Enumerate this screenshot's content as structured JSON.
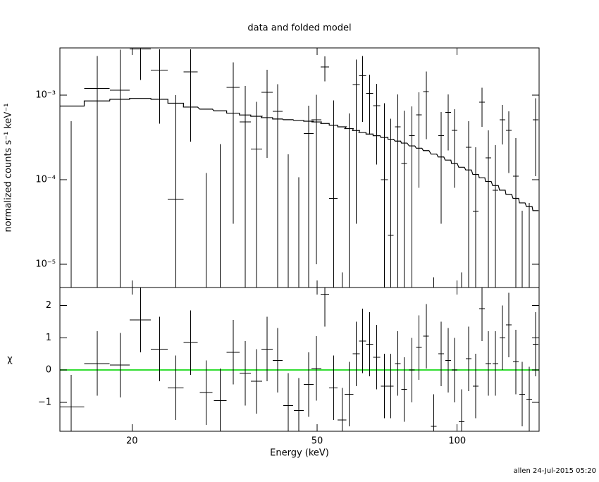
{
  "chart_data": {
    "type": "spectrum_residuals",
    "title": "data and folded model",
    "xlabel": "Energy (keV)",
    "ylabel": "normalized counts s⁻¹ keV⁻¹",
    "residual_ylabel": "χ",
    "footer": "allen 24-Jul-2015 05:20",
    "xlog": true,
    "ylog": true,
    "xlim": [
      14,
      150
    ],
    "xticks": [
      20,
      50,
      100
    ],
    "ylim": [
      5.3e-06,
      0.0036
    ],
    "yticks": [
      {
        "value": 1e-05,
        "label": "10⁻⁵"
      },
      {
        "value": 0.0001,
        "label": "10⁻⁴"
      },
      {
        "value": 0.001,
        "label": "10⁻³"
      }
    ],
    "residual_ylim": [
      -1.9,
      2.56
    ],
    "residual_yticks": [
      {
        "value": -1,
        "label": "−1"
      },
      0,
      1,
      2
    ],
    "residual_reference": 0,
    "data_color": "#000000",
    "model_color": "#000000",
    "reference_color": "#33dd33",
    "x": [
      14.81,
      16.85,
      18.85,
      20.86,
      22.93,
      24.85,
      26.74,
      28.88,
      30.97,
      33.0,
      35.02,
      37.04,
      39.02,
      41.13,
      43.35,
      45.68,
      47.97,
      49.85,
      52.0,
      54.23,
      56.55,
      58.56,
      60.65,
      62.59,
      64.82,
      67.13,
      69.77,
      72.0,
      74.57,
      76.96,
      79.98,
      82.83,
      85.78,
      89.13,
      92.31,
      95.59,
      98.65,
      102.2,
      105.8,
      109.6,
      113.1,
      116.7,
      120.9,
      125.1,
      129.1,
      133.7,
      138.0,
      142.9,
      147.5
    ],
    "xerr": [
      0.98,
      1.06,
      0.92,
      1.1,
      0.96,
      0.96,
      0.94,
      0.91,
      0.98,
      1.04,
      0.98,
      1.04,
      1.09,
      1.01,
      1.06,
      1.12,
      1.18,
      1.22,
      1.09,
      1.14,
      1.19,
      1.23,
      1.06,
      1.1,
      1.13,
      1.17,
      1.22,
      1.01,
      1.04,
      1.08,
      1.12,
      1.16,
      1.2,
      1.25,
      1.29,
      1.34,
      1.38,
      1.43,
      1.48,
      1.53,
      1.58,
      1.63,
      1.69,
      1.75,
      1.81,
      1.87,
      1.93,
      2.0,
      2.06
    ],
    "values": [
      3e-06,
      0.00119,
      0.00114,
      0.0035,
      0.00196,
      5.8e-05,
      0.00188,
      3e-06,
      3e-06,
      0.00123,
      0.00048,
      0.00023,
      0.00108,
      0.00064,
      3e-06,
      3e-06,
      0.00035,
      0.00051,
      0.00215,
      6e-05,
      3e-06,
      3e-06,
      0.00133,
      0.00168,
      0.00104,
      0.00075,
      0.0001,
      2.2e-05,
      0.00042,
      0.000155,
      0.00033,
      0.00058,
      0.0011,
      3e-06,
      0.00033,
      0.00062,
      0.00038,
      3e-06,
      0.00024,
      4.2e-05,
      0.00082,
      0.00018,
      7.5e-05,
      0.00051,
      0.00038,
      0.00011,
      3e-06,
      3e-06,
      0.00051
    ],
    "errors": [
      0.000487,
      0.0017,
      0.0023,
      0.002,
      0.0015,
      0.00094,
      0.0016,
      0.000117,
      0.00026,
      0.0012,
      0.0008,
      0.0006,
      0.0009,
      0.0007,
      0.000195,
      0.000104,
      0.0004,
      0.0005,
      0.0007,
      0.0008,
      5e-06,
      0.0006,
      0.0013,
      0.0012,
      0.0007,
      0.0006,
      0.0007,
      0.0005,
      0.0006,
      0.0005,
      0.0004,
      0.0005,
      0.0008,
      4e-06,
      0.0003,
      0.0004,
      0.0003,
      5e-06,
      0.00025,
      0.0002,
      0.0004,
      0.0002,
      0.00018,
      0.00025,
      0.00026,
      0.0002,
      4e-05,
      5e-05,
      0.0004
    ],
    "model": [
      0.00074,
      0.00085,
      0.00089,
      0.00091,
      0.00089,
      0.0008,
      0.00072,
      0.00068,
      0.00065,
      0.00061,
      0.00058,
      0.00056,
      0.00054,
      0.00052,
      0.00051,
      0.0005,
      0.00049,
      0.00048,
      0.00046,
      0.00044,
      0.00042,
      0.0004,
      0.00038,
      0.00036,
      0.000345,
      0.00033,
      0.000315,
      0.0003,
      0.000285,
      0.00027,
      0.00025,
      0.000235,
      0.00022,
      0.0002,
      0.000185,
      0.00017,
      0.000155,
      0.00014,
      0.00013,
      0.000115,
      0.000105,
      9.5e-05,
      8.5e-05,
      7.5e-05,
      6.7e-05,
      6e-05,
      5.3e-05,
      4.8e-05,
      4.3e-05
    ],
    "residuals": [
      -1.15,
      0.2,
      0.15,
      1.55,
      0.65,
      -0.55,
      0.85,
      -0.7,
      -0.95,
      0.55,
      -0.1,
      -0.35,
      0.65,
      0.3,
      -1.1,
      -1.25,
      -0.45,
      0.05,
      2.35,
      -0.55,
      -1.55,
      -0.75,
      0.5,
      0.9,
      0.8,
      0.4,
      -0.5,
      -0.5,
      0.2,
      -0.6,
      0.0,
      0.7,
      1.05,
      -1.75,
      0.5,
      0.3,
      0.0,
      -1.6,
      0.35,
      -0.5,
      1.9,
      0.2,
      0.2,
      1.0,
      1.4,
      0.25,
      -0.75,
      -0.9,
      0.8
    ],
    "residual_errors": [
      1,
      1,
      1,
      1,
      1,
      1,
      1,
      1,
      1,
      1,
      1,
      1,
      1,
      1,
      1,
      1,
      1,
      1,
      1,
      1,
      1,
      1,
      1,
      1,
      1,
      1,
      1,
      1,
      1,
      1,
      1,
      1,
      1,
      1,
      1,
      1,
      1,
      1,
      1,
      1,
      1,
      1,
      1,
      1,
      1,
      1,
      1,
      1,
      1
    ]
  }
}
